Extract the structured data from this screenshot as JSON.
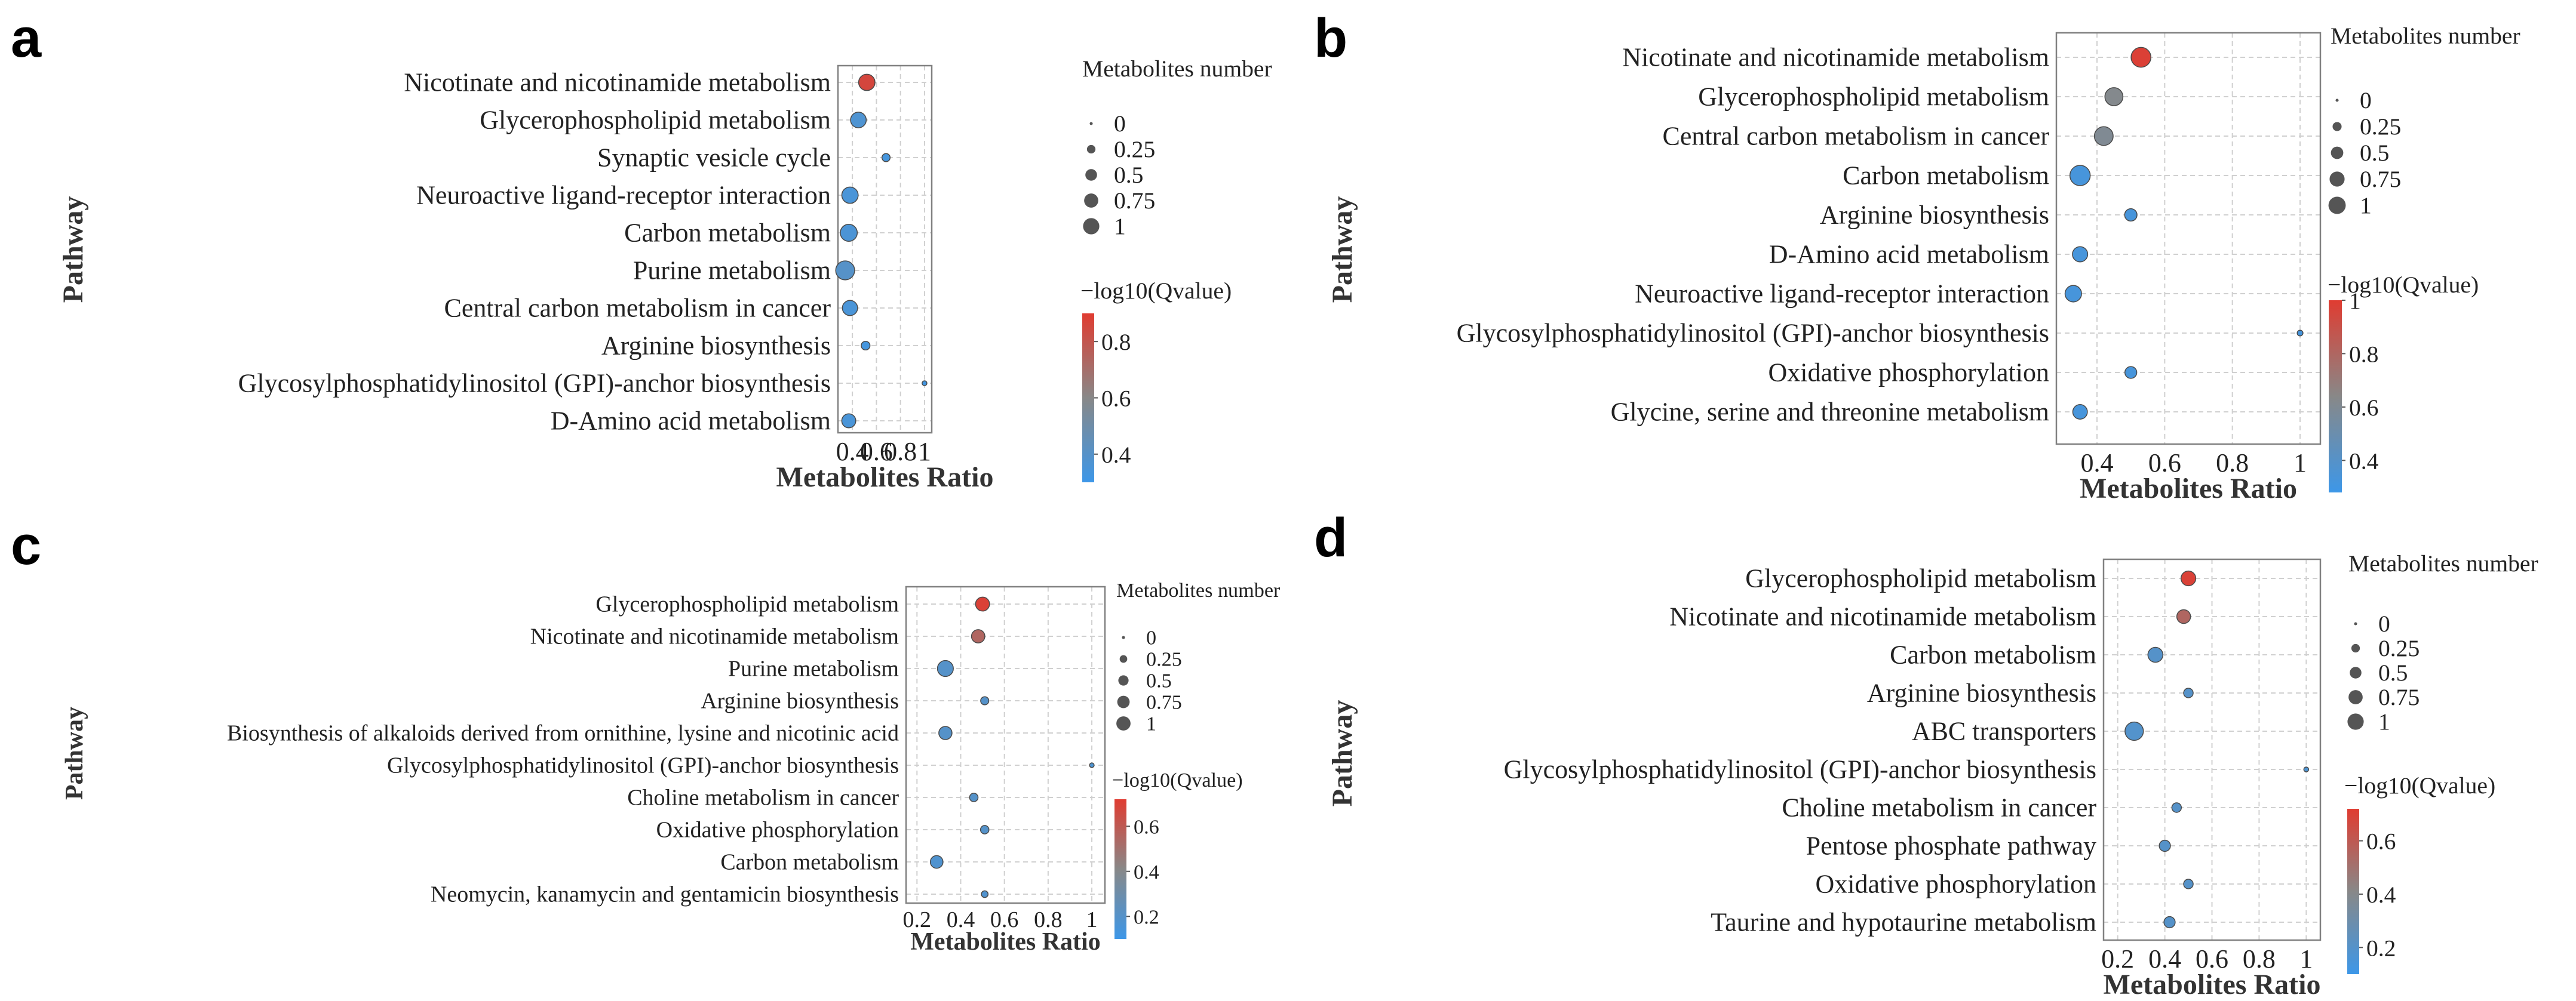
{
  "colors": {
    "low": "#3d97e8",
    "mid": "#888888",
    "high": "#e03c31",
    "grid": "#d0d0d0",
    "frame": "#808080",
    "bubble_stroke": "#4a4a4a"
  },
  "chart_data": [
    {
      "panel": "a",
      "type": "scatter",
      "xlabel": "Metabolites Ratio",
      "ylabel": "Pathway",
      "xlim": [
        0.28,
        1.06
      ],
      "xticks": [
        0.4,
        0.6,
        0.8,
        1
      ],
      "xtick_labels": [
        "0.4",
        "0.6",
        "0.8",
        "1"
      ],
      "size_legend": {
        "title": "Metabolites number",
        "labels": [
          "0",
          "0.25",
          "0.5",
          "0.75",
          "1"
        ],
        "values": [
          0,
          0.25,
          0.5,
          0.75,
          1
        ]
      },
      "color_legend": {
        "title": "−log10(Qvalue)",
        "range": [
          0.3,
          0.9
        ],
        "ticks": [
          0.4,
          0.6,
          0.8
        ],
        "tick_labels": [
          "0.4",
          "0.6",
          "0.8"
        ]
      },
      "points": [
        {
          "label": "Nicotinate and nicotinamide metabolism",
          "x": 0.52,
          "qvalue": 0.86,
          "size": 0.72
        },
        {
          "label": "Glycerophospholipid metabolism",
          "x": 0.45,
          "qvalue": 0.37,
          "size": 0.66
        },
        {
          "label": "Synaptic vesicle cycle",
          "x": 0.68,
          "qvalue": 0.33,
          "size": 0.15
        },
        {
          "label": "Neuroactive ligand-receptor interaction",
          "x": 0.38,
          "qvalue": 0.35,
          "size": 0.72
        },
        {
          "label": "Carbon metabolism",
          "x": 0.37,
          "qvalue": 0.36,
          "size": 0.78
        },
        {
          "label": "Purine metabolism",
          "x": 0.34,
          "qvalue": 0.4,
          "size": 0.98
        },
        {
          "label": "Central carbon metabolism in cancer",
          "x": 0.38,
          "qvalue": 0.35,
          "size": 0.62
        },
        {
          "label": "Arginine biosynthesis",
          "x": 0.51,
          "qvalue": 0.33,
          "size": 0.18
        },
        {
          "label": "Glycosylphosphatidylinositol (GPI)-anchor biosynthesis",
          "x": 1.0,
          "qvalue": 0.32,
          "size": 0.03
        },
        {
          "label": "D-Amino acid metabolism",
          "x": 0.37,
          "qvalue": 0.35,
          "size": 0.52
        }
      ]
    },
    {
      "panel": "b",
      "type": "scatter",
      "xlabel": "Metabolites Ratio",
      "ylabel": "Pathway",
      "xlim": [
        0.28,
        1.06
      ],
      "xticks": [
        0.4,
        0.6,
        0.8,
        1
      ],
      "xtick_labels": [
        "0.4",
        "0.6",
        "0.8",
        "1"
      ],
      "size_legend": {
        "title": "Metabolites number",
        "labels": [
          "0",
          "0.25",
          "0.5",
          "0.75",
          "1"
        ],
        "values": [
          0,
          0.25,
          0.5,
          0.75,
          1
        ]
      },
      "color_legend": {
        "title": "−log10(Qvalue)",
        "range": [
          0.28,
          1.0
        ],
        "ticks": [
          0.4,
          0.6,
          0.8,
          1
        ],
        "tick_labels": [
          "0.4",
          "0.6",
          "0.8",
          "1"
        ]
      },
      "points": [
        {
          "label": "Nicotinate and nicotinamide metabolism",
          "x": 0.53,
          "qvalue": 0.98,
          "size": 0.95
        },
        {
          "label": "Glycerophospholipid metabolism",
          "x": 0.45,
          "qvalue": 0.62,
          "size": 0.78
        },
        {
          "label": "Central carbon metabolism in cancer",
          "x": 0.42,
          "qvalue": 0.6,
          "size": 0.85
        },
        {
          "label": "Carbon metabolism",
          "x": 0.35,
          "qvalue": 0.33,
          "size": 1.0
        },
        {
          "label": "Arginine biosynthesis",
          "x": 0.5,
          "qvalue": 0.33,
          "size": 0.35
        },
        {
          "label": "D-Amino acid metabolism",
          "x": 0.35,
          "qvalue": 0.33,
          "size": 0.55
        },
        {
          "label": "Neuroactive ligand-receptor interaction",
          "x": 0.33,
          "qvalue": 0.33,
          "size": 0.65
        },
        {
          "label": "Glycosylphosphatidylinositol (GPI)-anchor biosynthesis",
          "x": 1.0,
          "qvalue": 0.32,
          "size": 0.05
        },
        {
          "label": "Oxidative phosphorylation",
          "x": 0.5,
          "qvalue": 0.33,
          "size": 0.32
        },
        {
          "label": "Glycine, serine and threonine metabolism",
          "x": 0.35,
          "qvalue": 0.33,
          "size": 0.5
        }
      ]
    },
    {
      "panel": "c",
      "type": "scatter",
      "xlabel": "Metabolites Ratio",
      "ylabel": "Pathway",
      "xlim": [
        0.15,
        1.06
      ],
      "xticks": [
        0.2,
        0.4,
        0.6,
        0.8,
        1
      ],
      "xtick_labels": [
        "0.2",
        "0.4",
        "0.6",
        "0.8",
        "1"
      ],
      "size_legend": {
        "title": "Metabolites number",
        "labels": [
          "0",
          "0.25",
          "0.5",
          "0.75",
          "1"
        ],
        "values": [
          0,
          0.25,
          0.5,
          0.75,
          1
        ]
      },
      "color_legend": {
        "title": "−log10(Qvalue)",
        "range": [
          0.1,
          0.72
        ],
        "ticks": [
          0.2,
          0.4,
          0.6
        ],
        "tick_labels": [
          "0.2",
          "0.4",
          "0.6"
        ]
      },
      "points": [
        {
          "label": "Glycerophospholipid metabolism",
          "x": 0.5,
          "qvalue": 0.7,
          "size": 0.68
        },
        {
          "label": "Nicotinate and nicotinamide metabolism",
          "x": 0.48,
          "qvalue": 0.55,
          "size": 0.62
        },
        {
          "label": "Purine metabolism",
          "x": 0.33,
          "qvalue": 0.2,
          "size": 0.9
        },
        {
          "label": "Arginine biosynthesis",
          "x": 0.51,
          "qvalue": 0.2,
          "size": 0.2
        },
        {
          "label": "Biosynthesis of alkaloids derived from ornithine, lysine and nicotinic acid",
          "x": 0.33,
          "qvalue": 0.2,
          "size": 0.6
        },
        {
          "label": "Glycosylphosphatidylinositol (GPI)-anchor biosynthesis",
          "x": 1.0,
          "qvalue": 0.17,
          "size": 0.03
        },
        {
          "label": "Choline metabolism in cancer",
          "x": 0.46,
          "qvalue": 0.2,
          "size": 0.22
        },
        {
          "label": "Oxidative phosphorylation",
          "x": 0.51,
          "qvalue": 0.2,
          "size": 0.22
        },
        {
          "label": "Carbon metabolism",
          "x": 0.29,
          "qvalue": 0.18,
          "size": 0.55
        },
        {
          "label": "Neomycin, kanamycin and gentamicin biosynthesis",
          "x": 0.51,
          "qvalue": 0.18,
          "size": 0.12
        }
      ]
    },
    {
      "panel": "d",
      "type": "scatter",
      "xlabel": "Metabolites Ratio",
      "ylabel": "Pathway",
      "xlim": [
        0.14,
        1.06
      ],
      "xticks": [
        0.2,
        0.4,
        0.6,
        0.8,
        1
      ],
      "xtick_labels": [
        "0.2",
        "0.4",
        "0.6",
        "0.8",
        "1"
      ],
      "size_legend": {
        "title": "Metabolites number",
        "labels": [
          "0",
          "0.25",
          "0.5",
          "0.75",
          "1"
        ],
        "values": [
          0,
          0.25,
          0.5,
          0.75,
          1
        ]
      },
      "color_legend": {
        "title": "−log10(Qvalue)",
        "range": [
          0.1,
          0.72
        ],
        "ticks": [
          0.2,
          0.4,
          0.6
        ],
        "tick_labels": [
          "0.2",
          "0.4",
          "0.6"
        ]
      },
      "points": [
        {
          "label": "Glycerophospholipid metabolism",
          "x": 0.5,
          "qvalue": 0.7,
          "size": 0.58
        },
        {
          "label": "Nicotinate and nicotinamide metabolism",
          "x": 0.48,
          "qvalue": 0.55,
          "size": 0.5
        },
        {
          "label": "Carbon metabolism",
          "x": 0.36,
          "qvalue": 0.2,
          "size": 0.6
        },
        {
          "label": "Arginine biosynthesis",
          "x": 0.5,
          "qvalue": 0.2,
          "size": 0.22
        },
        {
          "label": "ABC transporters",
          "x": 0.27,
          "qvalue": 0.19,
          "size": 0.92
        },
        {
          "label": "Glycosylphosphatidylinositol (GPI)-anchor biosynthesis",
          "x": 1.0,
          "qvalue": 0.17,
          "size": 0.03
        },
        {
          "label": "Choline metabolism in cancer",
          "x": 0.45,
          "qvalue": 0.2,
          "size": 0.22
        },
        {
          "label": "Pentose phosphate pathway",
          "x": 0.4,
          "qvalue": 0.2,
          "size": 0.32
        },
        {
          "label": "Oxidative phosphorylation",
          "x": 0.5,
          "qvalue": 0.2,
          "size": 0.22
        },
        {
          "label": "Taurine and hypotaurine metabolism",
          "x": 0.42,
          "qvalue": 0.2,
          "size": 0.32
        }
      ]
    }
  ]
}
